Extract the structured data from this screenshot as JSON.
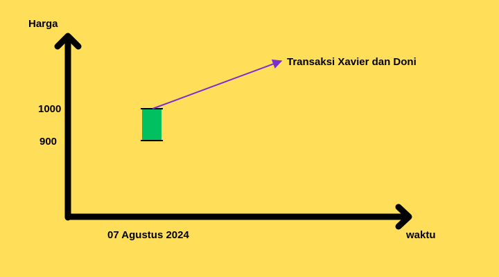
{
  "chart_data": {
    "type": "candlestick",
    "ylabel": "Harga",
    "xlabel": "waktu",
    "y_ticks": [
      1000,
      900
    ],
    "ylim": [
      700,
      1200
    ],
    "categories": [
      "07 Agustus 2024"
    ],
    "candles": [
      {
        "x": "07 Agustus 2024",
        "open": 900,
        "close": 1000,
        "high": 1000,
        "low": 900
      }
    ],
    "annotation": {
      "text": "Transaksi Xavier dan Doni",
      "target_value": 1000
    },
    "colors": {
      "background": "#FFDE59",
      "candle": "#00C060",
      "annotation_arrow": "#7B2FD0",
      "axis": "#000000"
    }
  }
}
